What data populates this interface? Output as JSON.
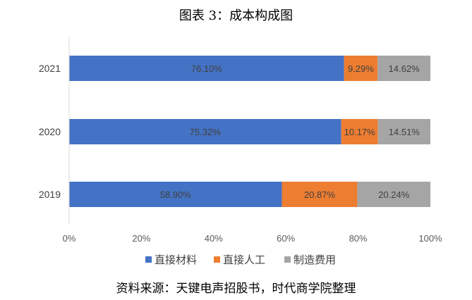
{
  "title": "图表 3：成本构成图",
  "source": "资料来源：天键电声招股书，时代商学院整理",
  "chart_data": {
    "type": "bar",
    "orientation": "horizontal",
    "stacked": "percent",
    "categories": [
      "2021",
      "2020",
      "2019"
    ],
    "series": [
      {
        "name": "直接材料",
        "color": "#4472C4",
        "values": [
          76.1,
          75.32,
          58.9
        ],
        "labels": [
          "76.10%",
          "75.32%",
          "58.90%"
        ]
      },
      {
        "name": "直接人工",
        "color": "#ED7D31",
        "values": [
          9.29,
          10.17,
          20.87
        ],
        "labels": [
          "9.29%",
          "10.17%",
          "20.87%"
        ]
      },
      {
        "name": "制造费用",
        "color": "#A5A5A5",
        "values": [
          14.62,
          14.51,
          20.24
        ],
        "labels": [
          "14.62%",
          "14.51%",
          "20.24%"
        ]
      }
    ],
    "x_ticks": [
      "0%",
      "20%",
      "40%",
      "60%",
      "80%",
      "100%"
    ],
    "xlim": [
      0,
      100
    ],
    "grid": false,
    "legend": "bottom"
  }
}
